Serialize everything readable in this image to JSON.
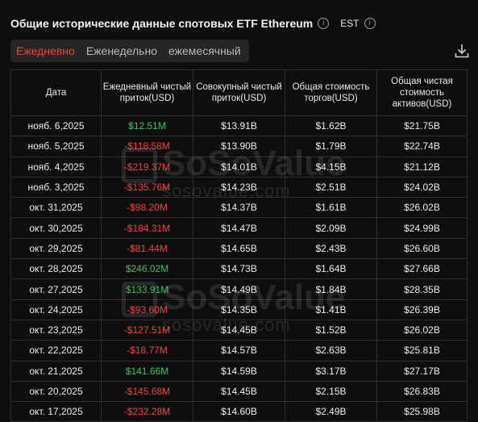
{
  "header": {
    "title": "Общие исторические данные спотовых ETF Ethereum",
    "timezone": "EST"
  },
  "tabs": [
    {
      "label": "Ежедневно",
      "active": true
    },
    {
      "label": "Еженедельно",
      "active": false
    },
    {
      "label": "ежемесячный",
      "active": false
    }
  ],
  "table": {
    "headers": [
      "Дата",
      "Ежедневный чистый приток(USD)",
      "Совокупный чистый приток(USD)",
      "Общая стоимость торгов(USD)",
      "Общая чистая стоимость активов(USD)"
    ],
    "rows": [
      {
        "date": "нояб. 6,2025",
        "daily": "$12.51M",
        "sign": "pos",
        "cumulative": "$13.91B",
        "value_traded": "$1.62B",
        "net_assets": "$21.75B"
      },
      {
        "date": "нояб. 5,2025",
        "daily": "-$118.58M",
        "sign": "neg",
        "cumulative": "$13.90B",
        "value_traded": "$1.79B",
        "net_assets": "$22.74B"
      },
      {
        "date": "нояб. 4,2025",
        "daily": "-$219.37M",
        "sign": "neg",
        "cumulative": "$14.01B",
        "value_traded": "$4.15B",
        "net_assets": "$21.12B"
      },
      {
        "date": "нояб. 3,2025",
        "daily": "-$135.76M",
        "sign": "neg",
        "cumulative": "$14.23B",
        "value_traded": "$2.51B",
        "net_assets": "$24.02B"
      },
      {
        "date": "окт. 31,2025",
        "daily": "-$98.20M",
        "sign": "neg",
        "cumulative": "$14.37B",
        "value_traded": "$1.61B",
        "net_assets": "$26.02B"
      },
      {
        "date": "окт. 30,2025",
        "daily": "-$184.31M",
        "sign": "neg",
        "cumulative": "$14.47B",
        "value_traded": "$2.09B",
        "net_assets": "$24.99B"
      },
      {
        "date": "окт. 29,2025",
        "daily": "-$81.44M",
        "sign": "neg",
        "cumulative": "$14.65B",
        "value_traded": "$2.43B",
        "net_assets": "$26.60B"
      },
      {
        "date": "окт. 28,2025",
        "daily": "$246.02M",
        "sign": "pos",
        "cumulative": "$14.73B",
        "value_traded": "$1.64B",
        "net_assets": "$27.66B"
      },
      {
        "date": "окт. 27,2025",
        "daily": "$133.91M",
        "sign": "pos",
        "cumulative": "$14.49B",
        "value_traded": "$1.84B",
        "net_assets": "$28.35B"
      },
      {
        "date": "окт. 24,2025",
        "daily": "-$93.60M",
        "sign": "neg",
        "cumulative": "$14.35B",
        "value_traded": "$1.41B",
        "net_assets": "$26.39B"
      },
      {
        "date": "окт. 23,2025",
        "daily": "-$127.51M",
        "sign": "neg",
        "cumulative": "$14.45B",
        "value_traded": "$1.52B",
        "net_assets": "$26.02B"
      },
      {
        "date": "окт. 22,2025",
        "daily": "-$18.77M",
        "sign": "neg",
        "cumulative": "$14.57B",
        "value_traded": "$2.63B",
        "net_assets": "$25.81B"
      },
      {
        "date": "окт. 21,2025",
        "daily": "$141.66M",
        "sign": "pos",
        "cumulative": "$14.59B",
        "value_traded": "$3.17B",
        "net_assets": "$27.17B"
      },
      {
        "date": "окт. 20,2025",
        "daily": "-$145.68M",
        "sign": "neg",
        "cumulative": "$14.45B",
        "value_traded": "$2.15B",
        "net_assets": "$26.83B"
      },
      {
        "date": "окт. 17,2025",
        "daily": "-$232.28M",
        "sign": "neg",
        "cumulative": "$14.60B",
        "value_traded": "$2.49B",
        "net_assets": "$25.98B"
      }
    ]
  },
  "watermark": {
    "brand": "SoSoValue",
    "url": "sosovalue.com"
  },
  "colors": {
    "positive": "#34c759",
    "negative": "#f04438",
    "accent": "#ef4437"
  }
}
